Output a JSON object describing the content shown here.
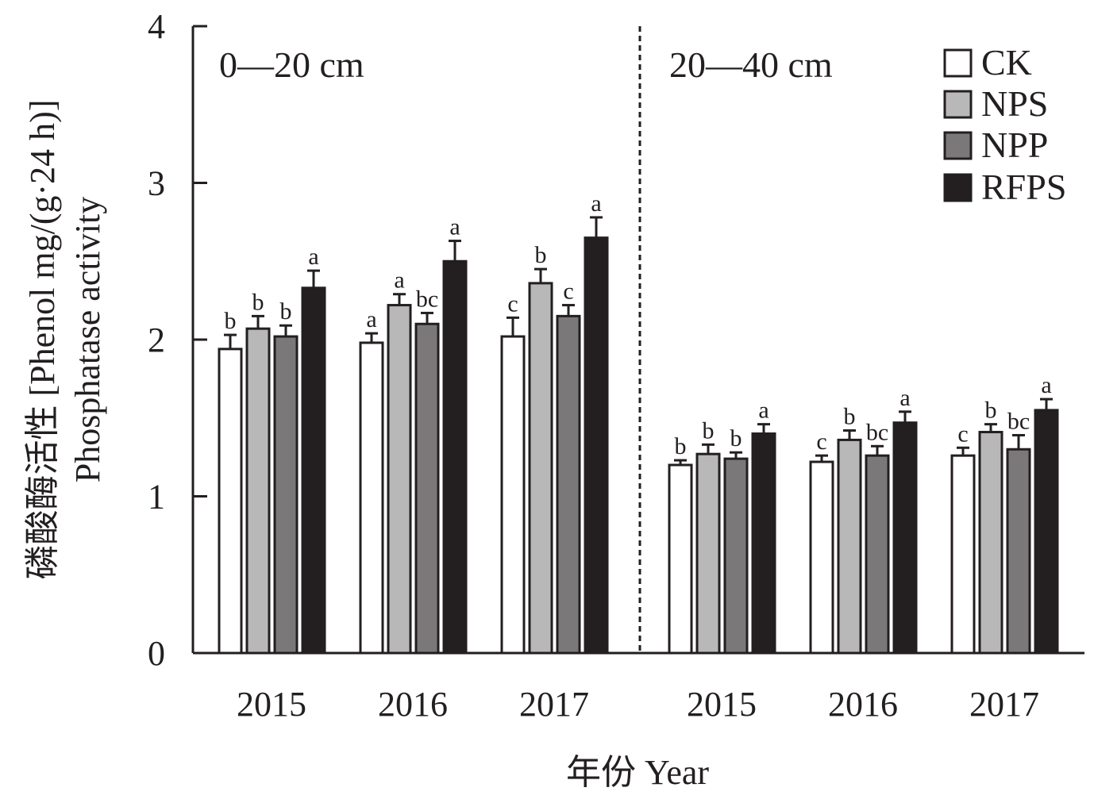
{
  "chart_data": {
    "type": "bar",
    "title": "",
    "ylabel_cn": "磷酸酶活性 [Phenol mg/(g·24 h)]",
    "ylabel_en": "Phosphatase activity",
    "xlabel": "年份 Year",
    "ylim": [
      0,
      4
    ],
    "yticks": [
      0,
      1,
      2,
      3,
      4
    ],
    "panels": [
      "0—20 cm",
      "20—40 cm"
    ],
    "categories": [
      "2015",
      "2016",
      "2017",
      "2015",
      "2016",
      "2017"
    ],
    "series": [
      {
        "name": "CK",
        "color": "#ffffff",
        "values": [
          1.94,
          1.98,
          2.02,
          1.2,
          1.22,
          1.26
        ],
        "errors": [
          0.09,
          0.06,
          0.12,
          0.03,
          0.04,
          0.05
        ],
        "letters": [
          "b",
          "a",
          "c",
          "b",
          "c",
          "c"
        ]
      },
      {
        "name": "NPS",
        "color": "#b9b8b9",
        "values": [
          2.07,
          2.22,
          2.36,
          1.27,
          1.36,
          1.41
        ],
        "errors": [
          0.08,
          0.07,
          0.09,
          0.06,
          0.06,
          0.05
        ],
        "letters": [
          "b",
          "a",
          "b",
          "b",
          "b",
          "b"
        ]
      },
      {
        "name": "NPP",
        "color": "#7a7879",
        "values": [
          2.02,
          2.1,
          2.15,
          1.24,
          1.26,
          1.3
        ],
        "errors": [
          0.07,
          0.07,
          0.07,
          0.04,
          0.06,
          0.09
        ],
        "letters": [
          "b",
          "bc",
          "c",
          "b",
          "bc",
          "bc"
        ]
      },
      {
        "name": "RFPS",
        "color": "#231f20",
        "values": [
          2.33,
          2.5,
          2.65,
          1.4,
          1.47,
          1.55
        ],
        "errors": [
          0.11,
          0.13,
          0.13,
          0.06,
          0.07,
          0.07
        ],
        "letters": [
          "a",
          "a",
          "a",
          "a",
          "a",
          "a"
        ]
      }
    ],
    "legend": "top-right"
  }
}
